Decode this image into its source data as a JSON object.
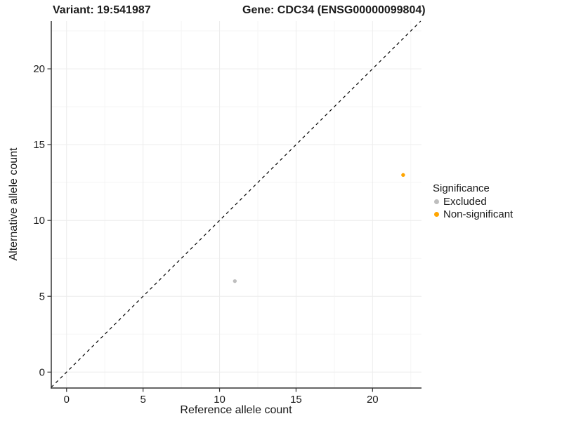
{
  "figure": {
    "title_variant": "Variant: 19:541987",
    "title_gene": "Gene: CDC34 (ENSG00000099804)"
  },
  "chart_data": {
    "type": "scatter",
    "xlabel": "Reference allele count",
    "ylabel": "Alternative allele count",
    "xlim": [
      -1.0,
      23.2
    ],
    "ylim": [
      -1.05,
      23.15
    ],
    "x_ticks": [
      0,
      5,
      10,
      15,
      20
    ],
    "y_ticks": [
      0,
      5,
      10,
      15,
      20
    ],
    "minor_ticks": [
      2.5,
      7.5,
      12.5,
      17.5,
      22.5
    ],
    "grid": true,
    "identity_line": {
      "style": "dashed",
      "color": "#000000",
      "equation": "y = x"
    },
    "series": [
      {
        "name": "Excluded",
        "color": "#BEBEBE",
        "points": [
          [
            11,
            6
          ]
        ]
      },
      {
        "name": "Non-significant",
        "color": "#FFA500",
        "points": [
          [
            22,
            13
          ]
        ]
      }
    ],
    "legend": {
      "title": "Significance",
      "position": "right",
      "items": [
        {
          "label": "Excluded",
          "color": "#BEBEBE"
        },
        {
          "label": "Non-significant",
          "color": "#FFA500"
        }
      ]
    },
    "theme": {
      "grid_major": "#ECECEC",
      "grid_minor": "#F5F5F5",
      "axis_line": "#333333",
      "tick_color": "#333333",
      "background": "#FFFFFF"
    }
  }
}
